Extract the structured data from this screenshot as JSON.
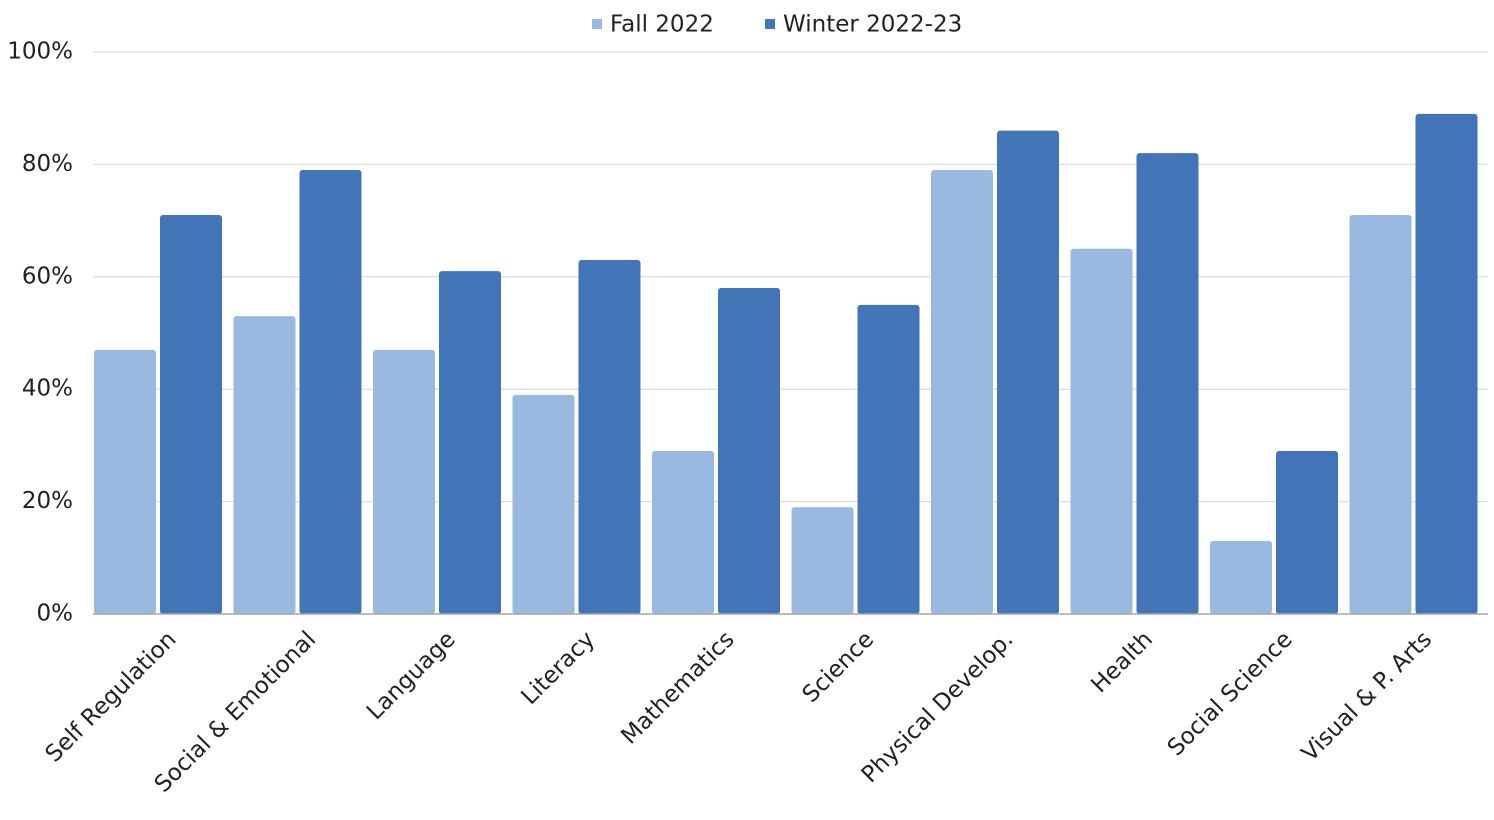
{
  "chart_data": {
    "type": "bar",
    "categories": [
      "Self Regulation",
      "Social & Emotional",
      "Language",
      "Literacy",
      "Mathematics",
      "Science",
      "Physical Develop.",
      "Health",
      "Social Science",
      "Visual & P. Arts"
    ],
    "series": [
      {
        "name": "Fall 2022",
        "color": "#9ab9e0",
        "values": [
          47,
          53,
          47,
          39,
          29,
          19,
          79,
          65,
          13,
          71
        ]
      },
      {
        "name": "Winter 2022-23",
        "color": "#4275b8",
        "values": [
          71,
          79,
          61,
          63,
          58,
          55,
          86,
          82,
          29,
          89
        ]
      }
    ],
    "ylim": [
      0,
      100
    ],
    "yticks": [
      {
        "value": 0,
        "label": "0%"
      },
      {
        "value": 20,
        "label": "20%"
      },
      {
        "value": 40,
        "label": "40%"
      },
      {
        "value": 60,
        "label": "60%"
      },
      {
        "value": 80,
        "label": "80%"
      },
      {
        "value": 100,
        "label": "100%"
      }
    ],
    "grid": true,
    "legend": "top"
  }
}
